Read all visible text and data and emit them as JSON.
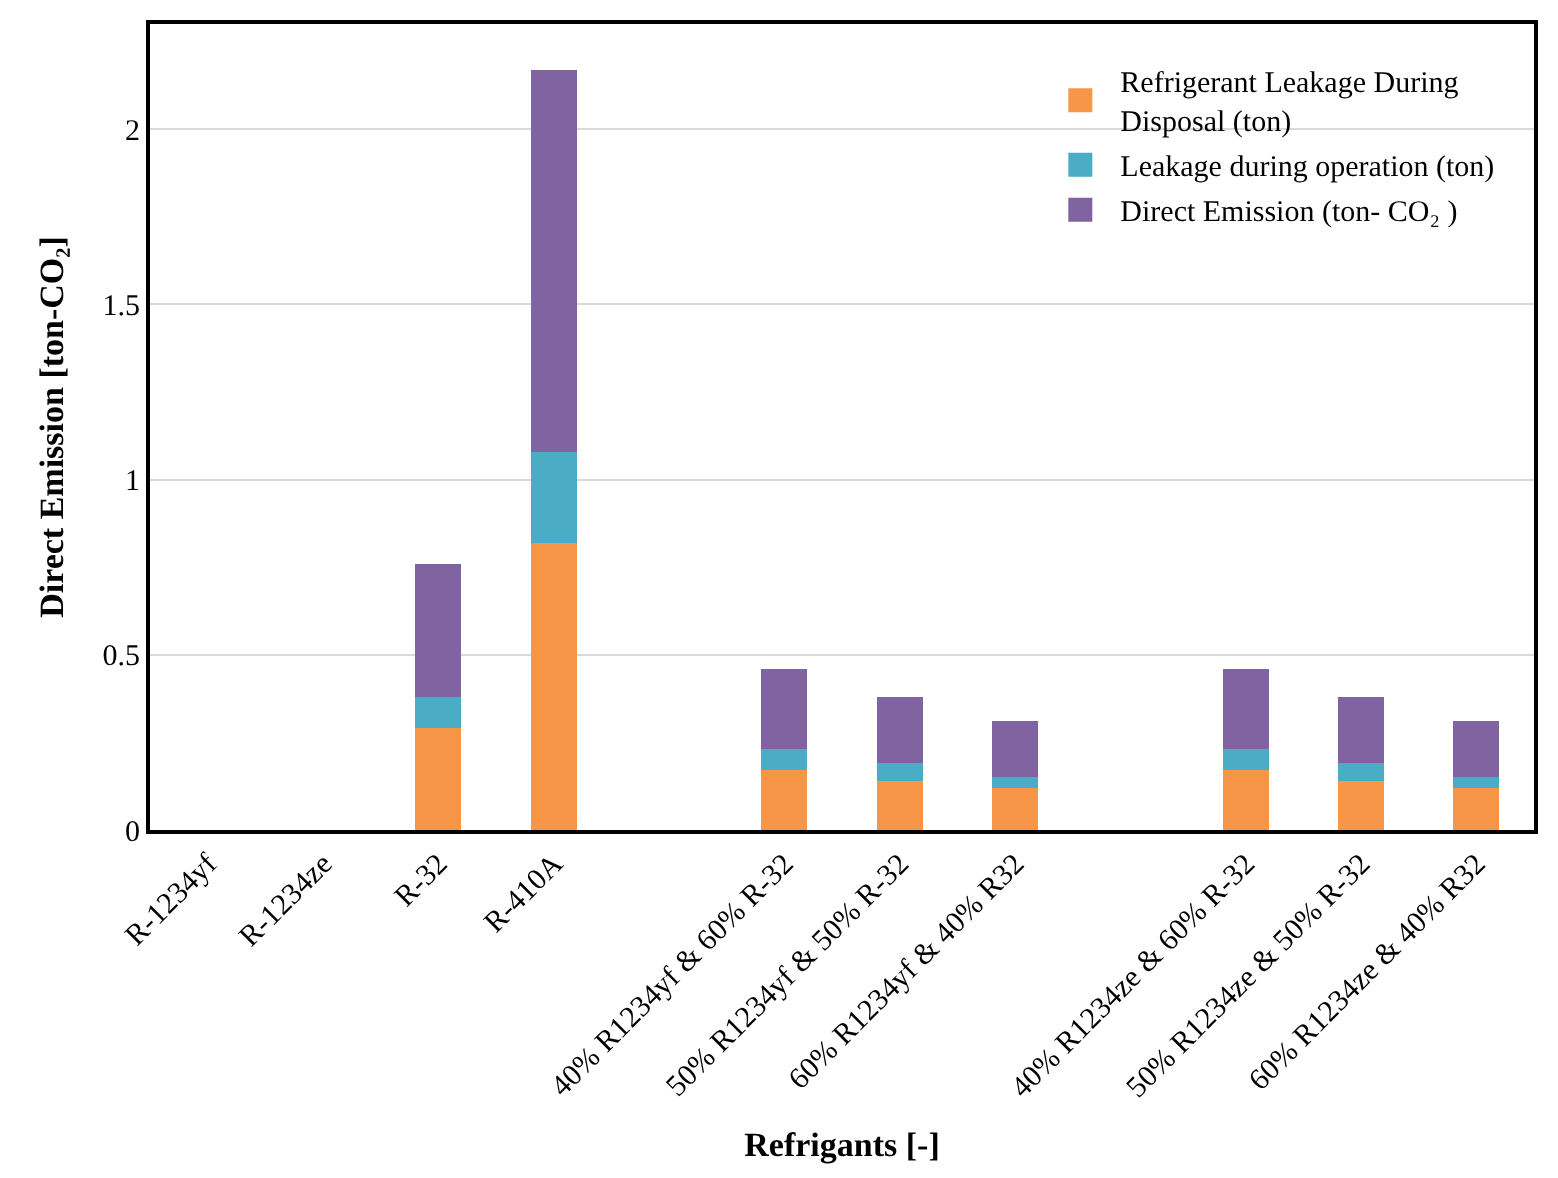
{
  "chart_data": {
    "type": "bar",
    "stacked": true,
    "xlabel": "Refrigants [-]",
    "ylabel": "Direct Emission [ton-CO₂]",
    "categories": [
      "R-1234yf",
      "R-1234ze",
      "R-32",
      "R-410A",
      null,
      "40% R1234yf & 60% R-32",
      "50% R1234yf & 50% R-32",
      "60% R1234yf & 40% R32",
      null,
      "40% R1234ze & 60% R-32",
      "50% R1234ze & 50% R-32",
      "60% R1234ze & 40% R32"
    ],
    "series": [
      {
        "name": "Refrigerant Leakage During Disposal (ton)",
        "color": "#f79646",
        "values": [
          0,
          0,
          0.29,
          0.82,
          null,
          0.17,
          0.14,
          0.12,
          null,
          0.17,
          0.14,
          0.12
        ]
      },
      {
        "name": "Leakage during operation (ton)",
        "color": "#4bacc6",
        "values": [
          0,
          0,
          0.09,
          0.26,
          null,
          0.06,
          0.05,
          0.03,
          null,
          0.06,
          0.05,
          0.03
        ]
      },
      {
        "name": "Direct Emission (ton- CO₂ )",
        "color": "#8064a2",
        "values": [
          0,
          0,
          0.38,
          1.09,
          null,
          0.23,
          0.19,
          0.16,
          null,
          0.23,
          0.19,
          0.16
        ]
      }
    ],
    "ylim": [
      0,
      2.3
    ],
    "yticks": [
      0,
      0.5,
      1,
      1.5,
      2
    ],
    "grid": "y",
    "legend": "top right"
  }
}
